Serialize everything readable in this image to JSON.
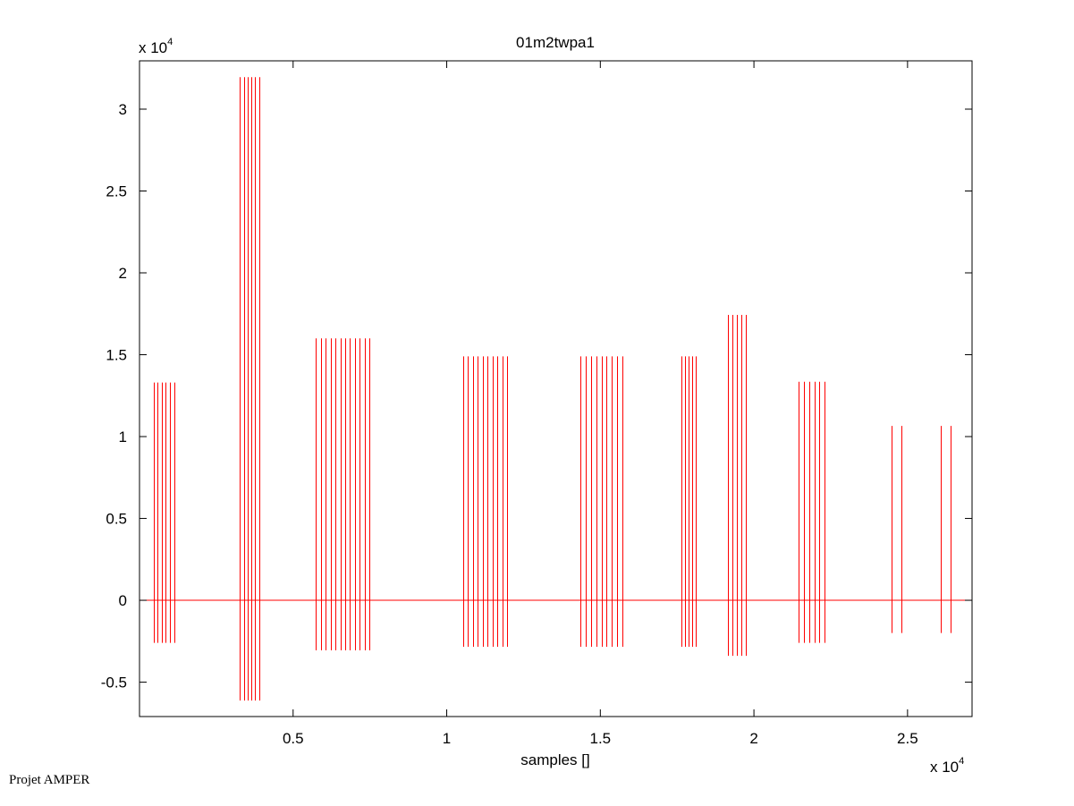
{
  "chart_data": {
    "type": "line",
    "title": "01m2twpa1",
    "xlabel": "samples []",
    "ylabel": "",
    "x_multiplier": {
      "prefix": "x 10",
      "exp": "4"
    },
    "y_multiplier": {
      "prefix": "x 10",
      "exp": "4"
    },
    "xlim": [
      0,
      27100
    ],
    "ylim": [
      -7100,
      32950
    ],
    "xticks": [
      5000,
      10000,
      15000,
      20000,
      25000
    ],
    "xtick_labels": [
      "0.5",
      "1",
      "1.5",
      "2",
      "2.5"
    ],
    "yticks": [
      -5000,
      0,
      5000,
      10000,
      15000,
      20000,
      25000,
      30000
    ],
    "ytick_labels": [
      "-0.5",
      "0",
      "0.5",
      "1",
      "1.5",
      "2",
      "2.5",
      "3"
    ],
    "grid": false,
    "line_color": "#ff0000",
    "baseline": 0,
    "spike_groups": [
      {
        "x": [
          456,
          590,
          720,
          852,
          988,
          1125
        ],
        "max": 13300,
        "min": -2600
      },
      {
        "x": [
          3265,
          3393,
          3517,
          3634,
          3759,
          3887
        ],
        "max": 31950,
        "min": -6120
      },
      {
        "x": [
          5747,
          5905,
          6062,
          6220,
          6377,
          6535,
          6692,
          6850,
          7007,
          7165,
          7322,
          7480
        ],
        "max": 16000,
        "min": -3060
      },
      {
        "x": [
          10532,
          10692,
          10852,
          11012,
          11172,
          11332,
          11492,
          11652,
          11812,
          11972
        ],
        "max": 14900,
        "min": -2840
      },
      {
        "x": [
          14352,
          14523,
          14694,
          14865,
          15036,
          15207,
          15378,
          15549,
          15720
        ],
        "max": 14900,
        "min": -2840
      },
      {
        "x": [
          17630,
          17750,
          17870,
          17990,
          18110
        ],
        "max": 14900,
        "min": -2840
      },
      {
        "x": [
          19166,
          19311,
          19456,
          19601,
          19746
        ],
        "max": 17430,
        "min": -3390
      },
      {
        "x": [
          21462,
          21630,
          21798,
          21966,
          22134,
          22302
        ],
        "max": 13350,
        "min": -2600
      },
      {
        "x": [
          24486,
          24806
        ],
        "max": 10650,
        "min": -2000
      },
      {
        "x": [
          26084,
          26404
        ],
        "max": 10650,
        "min": -2000
      }
    ]
  },
  "footer": "Projet AMPER"
}
